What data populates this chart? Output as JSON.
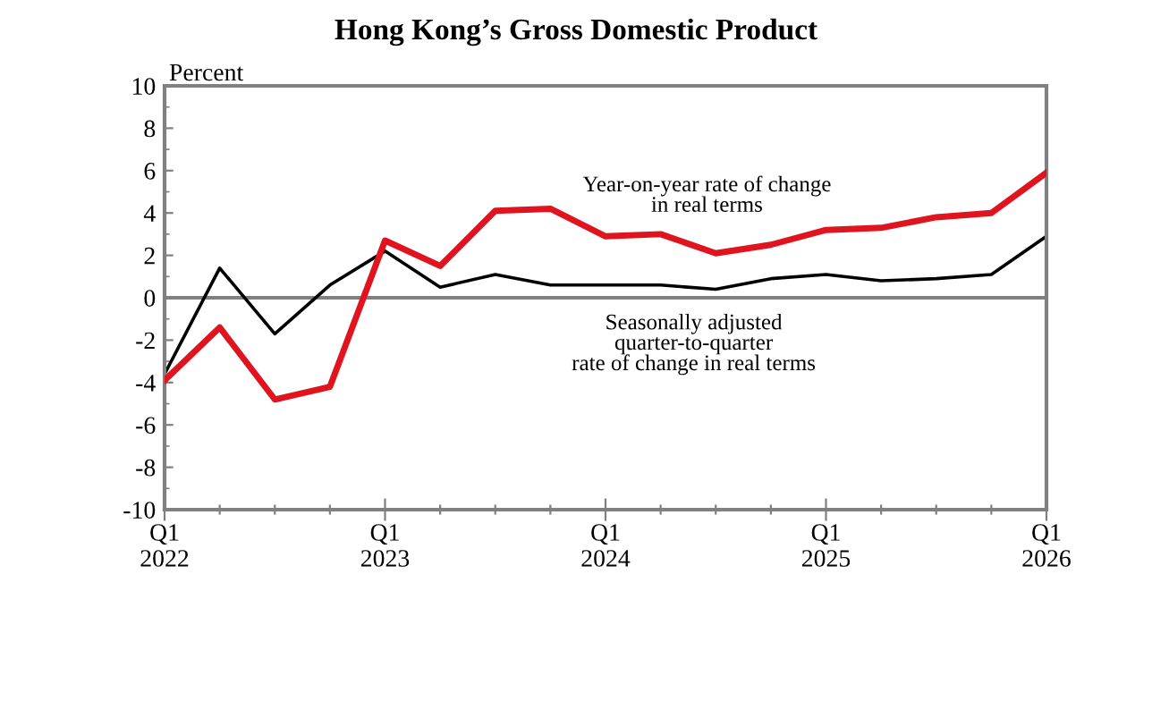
{
  "chart_data": {
    "type": "line",
    "title": "Hong Kong’s Gross Domestic Product",
    "ylabel": "Percent",
    "categories": [
      "Q1\n2022",
      null,
      null,
      null,
      "Q1\n2023",
      null,
      null,
      null,
      "Q1\n2024",
      null,
      null,
      null,
      "Q1\n2025",
      null,
      null,
      null,
      "Q1\n2026"
    ],
    "series": [
      {
        "name": "Year-on-year rate of change\nin real terms",
        "color": "#e0141e",
        "values": [
          -3.9,
          -1.4,
          -4.8,
          -4.2,
          2.7,
          1.5,
          4.1,
          4.2,
          2.9,
          3.0,
          2.1,
          2.5,
          3.2,
          3.3,
          3.8,
          4.0,
          5.9
        ]
      },
      {
        "name": "Seasonally adjusted\nquarter-to-quarter\nrate of change in real terms",
        "color": "#000000",
        "values": [
          -3.6,
          1.4,
          -1.7,
          0.6,
          2.2,
          0.5,
          1.1,
          0.6,
          0.6,
          0.6,
          0.4,
          0.9,
          1.1,
          0.8,
          0.9,
          1.1,
          2.9
        ]
      }
    ],
    "ylim": [
      -10,
      10
    ],
    "yticks": [
      -10,
      -8,
      -6,
      -4,
      -2,
      0,
      2,
      4,
      6,
      8,
      10
    ],
    "ref_lines": [
      {
        "axis": "y",
        "value": 0,
        "color": "#808080"
      }
    ],
    "grid": false,
    "legend": false,
    "marker": "none",
    "line_style": "solid"
  }
}
